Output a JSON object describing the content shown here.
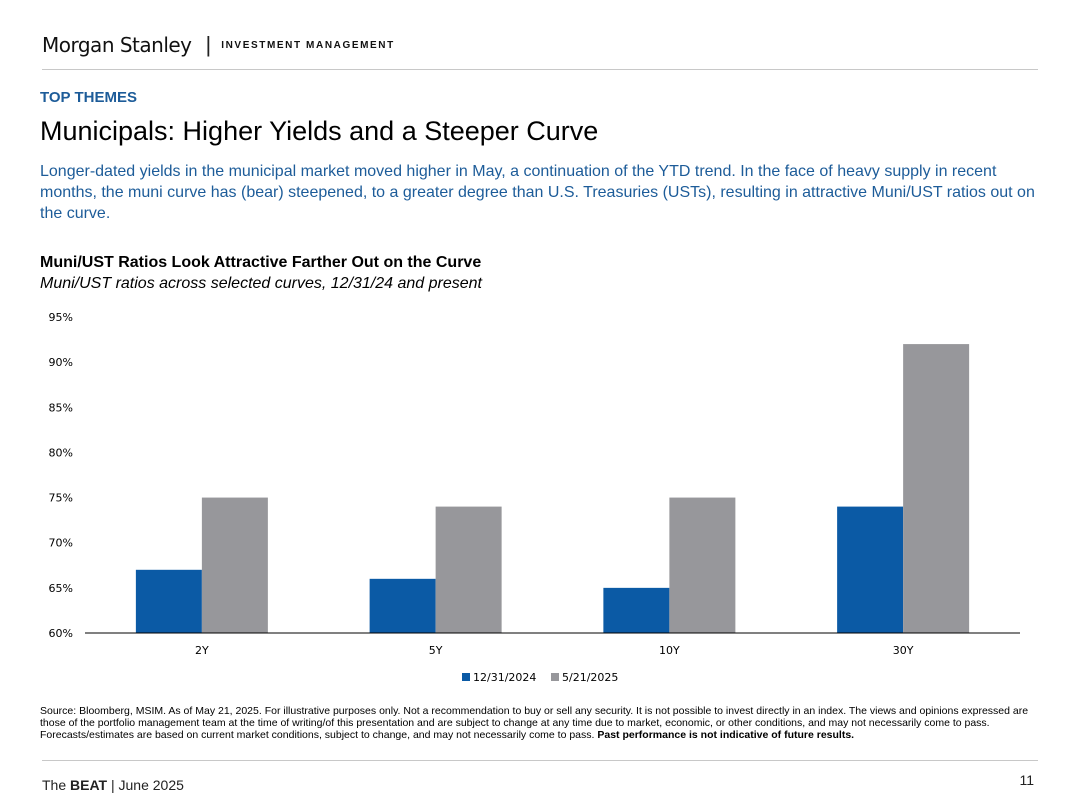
{
  "header": {
    "brand": "Morgan Stanley",
    "separator": "|",
    "division": "INVESTMENT MANAGEMENT"
  },
  "section_label": "TOP THEMES",
  "title": "Municipals: Higher Yields and a Steeper Curve",
  "intro": "Longer-dated yields in the municipal market moved higher in May, a continuation of the YTD trend. In the face of heavy supply in recent months, the muni curve has (bear) steepened, to a greater degree than U.S. Treasuries (USTs), resulting in attractive Muni/UST ratios out on the curve.",
  "chart_data": {
    "type": "bar",
    "title": "Muni/UST Ratios Look Attractive Farther Out on the Curve",
    "subtitle": "Muni/UST ratios across selected curves, 12/31/24 and present",
    "categories": [
      "2Y",
      "5Y",
      "10Y",
      "30Y"
    ],
    "series": [
      {
        "name": "12/31/2024",
        "color": "#0b5aa5",
        "values": [
          67,
          66,
          65,
          74
        ]
      },
      {
        "name": "5/21/2025",
        "color": "#97979b",
        "values": [
          75,
          74,
          75,
          92
        ]
      }
    ],
    "ylim": [
      60,
      95
    ],
    "yticks": [
      "60%",
      "65%",
      "70%",
      "75%",
      "80%",
      "85%",
      "90%",
      "95%"
    ],
    "ytick_values": [
      60,
      65,
      70,
      75,
      80,
      85,
      90,
      95
    ],
    "legend_position": "bottom-center",
    "grid": false
  },
  "source": {
    "text": "Source: Bloomberg, MSIM. As of May 21, 2025. For illustrative purposes only. Not a recommendation to buy or sell any security. It is not possible to invest directly in an index. The views and opinions expressed are those of the portfolio management team at the time of writing/of this presentation and are subject to change at any time due to market, economic, or other conditions, and may not necessarily come to pass.  Forecasts/estimates are based on current market conditions, subject to change, and may not necessarily come to pass.",
    "bold": "Past performance is not indicative of future results."
  },
  "footer": {
    "prefix": "The",
    "bold": "BEAT",
    "suffix": "| June 2025"
  },
  "page_number": "11"
}
